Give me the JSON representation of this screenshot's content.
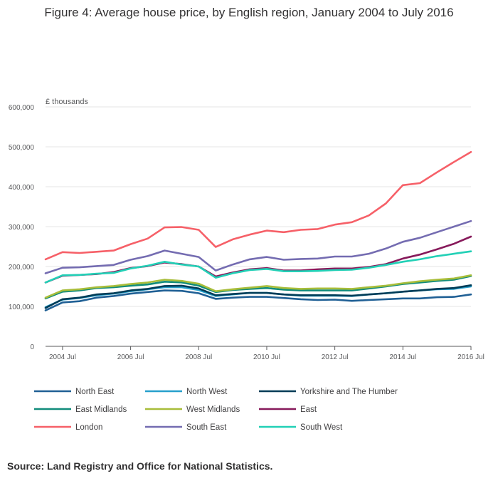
{
  "title": "Figure 4: Average house price, by English region, January 2004 to July 2016",
  "source": "Source: Land Registry and Office for National Statistics.",
  "chart_data": {
    "type": "line",
    "title": "Figure 4: Average house price, by English region, January 2004 to July 2016",
    "ylabel": "£ thousands",
    "xlabel": "",
    "xlim": [
      2004.0,
      2016.5
    ],
    "ylim": [
      0,
      600000
    ],
    "grid": true,
    "legend_position": "bottom",
    "x_ticks": [
      {
        "value": 2004.5,
        "label": "2004 Jul"
      },
      {
        "value": 2006.5,
        "label": "2006 Jul"
      },
      {
        "value": 2008.5,
        "label": "2008 Jul"
      },
      {
        "value": 2010.5,
        "label": "2010 Jul"
      },
      {
        "value": 2012.5,
        "label": "2012 Jul"
      },
      {
        "value": 2014.5,
        "label": "2014 Jul"
      },
      {
        "value": 2016.5,
        "label": "2016 Jul"
      }
    ],
    "y_ticks": [
      {
        "value": 0,
        "label": "0"
      },
      {
        "value": 100000,
        "label": "100,000"
      },
      {
        "value": 200000,
        "label": "200,000"
      },
      {
        "value": 300000,
        "label": "300,000"
      },
      {
        "value": 400000,
        "label": "400,000"
      },
      {
        "value": 500000,
        "label": "500,000"
      },
      {
        "value": 600000,
        "label": "600,000"
      }
    ],
    "x": [
      2004.0,
      2004.5,
      2005.0,
      2005.5,
      2006.0,
      2006.5,
      2007.0,
      2007.5,
      2008.0,
      2008.5,
      2009.0,
      2009.5,
      2010.0,
      2010.5,
      2011.0,
      2011.5,
      2012.0,
      2012.5,
      2013.0,
      2013.5,
      2014.0,
      2014.5,
      2015.0,
      2015.5,
      2016.0,
      2016.5
    ],
    "series": [
      {
        "name": "North East",
        "color": "#206095",
        "values": [
          90000,
          110000,
          113000,
          122000,
          126000,
          132000,
          136000,
          140000,
          139000,
          133000,
          119000,
          122000,
          124000,
          124000,
          121000,
          118000,
          116000,
          117000,
          114000,
          116000,
          118000,
          120000,
          120000,
          123000,
          124000,
          130000
        ]
      },
      {
        "name": "North West",
        "color": "#27a0cc",
        "values": [
          98000,
          117000,
          121000,
          128000,
          132000,
          138000,
          143000,
          148000,
          148000,
          141000,
          126000,
          130000,
          134000,
          134000,
          130000,
          127000,
          127000,
          127000,
          126000,
          130000,
          133000,
          137000,
          140000,
          143000,
          144000,
          150000
        ]
      },
      {
        "name": "Yorkshire and The Humber",
        "color": "#003c57",
        "values": [
          96000,
          118000,
          122000,
          130000,
          133000,
          140000,
          144000,
          151000,
          152000,
          145000,
          128000,
          131000,
          134000,
          134000,
          130000,
          128000,
          128000,
          128000,
          127000,
          130000,
          133000,
          137000,
          140000,
          144000,
          146000,
          153000
        ]
      },
      {
        "name": "East Midlands",
        "color": "#118c7b",
        "values": [
          120000,
          137000,
          140000,
          146000,
          148000,
          152000,
          155000,
          162000,
          160000,
          152000,
          136000,
          141000,
          144000,
          146000,
          142000,
          140000,
          140000,
          140000,
          140000,
          145000,
          150000,
          156000,
          160000,
          164000,
          167000,
          176000
        ]
      },
      {
        "name": "West Midlands",
        "color": "#a8bd3a",
        "values": [
          122000,
          140000,
          143000,
          148000,
          151000,
          156000,
          160000,
          167000,
          164000,
          157000,
          138000,
          143000,
          147000,
          151000,
          146000,
          144000,
          145000,
          145000,
          144000,
          148000,
          152000,
          158000,
          163000,
          167000,
          170000,
          178000
        ]
      },
      {
        "name": "East",
        "color": "#871a5b",
        "values": [
          160000,
          177000,
          179000,
          181000,
          186000,
          196000,
          201000,
          210000,
          206000,
          200000,
          175000,
          185000,
          193000,
          196000,
          190000,
          190000,
          193000,
          195000,
          195000,
          199000,
          206000,
          220000,
          230000,
          243000,
          257000,
          275000
        ]
      },
      {
        "name": "London",
        "color": "#f66068",
        "values": [
          218000,
          236000,
          234000,
          237000,
          240000,
          256000,
          270000,
          298000,
          299000,
          292000,
          249000,
          268000,
          280000,
          290000,
          286000,
          292000,
          294000,
          305000,
          311000,
          328000,
          358000,
          404000,
          409000,
          436000,
          462000,
          487000
        ]
      },
      {
        "name": "South East",
        "color": "#746cb1",
        "values": [
          183000,
          197000,
          198000,
          201000,
          204000,
          217000,
          226000,
          240000,
          232000,
          224000,
          190000,
          205000,
          218000,
          224000,
          217000,
          219000,
          220000,
          225000,
          225000,
          232000,
          245000,
          262000,
          272000,
          286000,
          300000,
          314000
        ]
      },
      {
        "name": "South West",
        "color": "#22d0b6",
        "values": [
          160000,
          178000,
          179000,
          182000,
          184000,
          195000,
          202000,
          212000,
          205000,
          200000,
          172000,
          183000,
          191000,
          194000,
          188000,
          188000,
          189000,
          191000,
          192000,
          197000,
          204000,
          212000,
          218000,
          226000,
          232000,
          238000
        ]
      }
    ]
  }
}
